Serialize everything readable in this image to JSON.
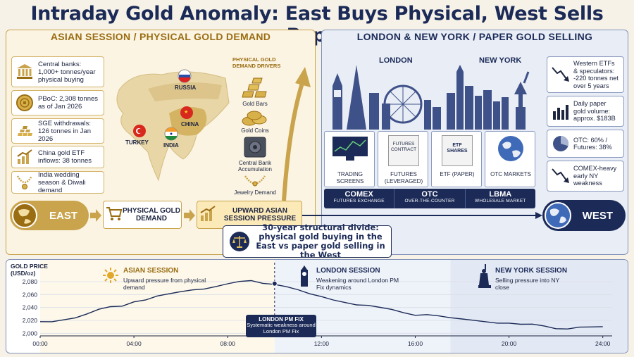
{
  "title": "Intraday Gold Anomaly: East Buys Physical, West Sells Paper",
  "left_panel": {
    "header": "ASIAN SESSION / PHYSICAL GOLD DEMAND",
    "cards": [
      {
        "text": "Central banks: 1,000+ tonnes/year physical buying",
        "icon": "bank-icon"
      },
      {
        "text": "PBoC: 2,308 tonnes as of Jan 2026",
        "icon": "gold-coin-icon"
      },
      {
        "text": "SGE withdrawals: 126 tonnes in Jan 2026",
        "icon": "gold-bars-stack-icon"
      },
      {
        "text": "China gold ETF inflows: 38 tonnes",
        "icon": "bar-chart-up-icon"
      },
      {
        "text": "India wedding season & Diwali demand",
        "icon": "necklace-icon"
      }
    ],
    "countries": {
      "russia": "RUSSIA",
      "china": "CHINA",
      "turkey": "TURKEY",
      "india": "INDIA"
    },
    "drivers_title": "PHYSICAL GOLD DEMAND DRIVERS",
    "drivers": [
      "Gold Bars",
      "Gold Coins",
      "Central Bank Accumulation",
      "Jewelry Demand"
    ]
  },
  "right_panel": {
    "header": "LONDON & NEW YORK / PAPER GOLD SELLING",
    "city_london": "LONDON",
    "city_newyork": "NEW YORK",
    "instruments": [
      {
        "label": "TRADING SCREENS"
      },
      {
        "label": "FUTURES (LEVERAGED)",
        "doc": "FUTURES CONTRACT"
      },
      {
        "label": "ETF (PAPER)",
        "doc": "ETF SHARES"
      },
      {
        "label": "OTC MARKETS"
      }
    ],
    "markets": [
      {
        "name": "COMEX",
        "sub": "FUTURES EXCHANGE"
      },
      {
        "name": "OTC",
        "sub": "OVER-THE-COUNTER"
      },
      {
        "name": "LBMA",
        "sub": "WHOLESALE MARKET"
      }
    ],
    "cards": [
      {
        "text": "Western ETFs & speculators: -220 tonnes net over 5 years",
        "icon": "down-trend-icon"
      },
      {
        "text": "Daily paper gold volume: approx. $183B",
        "icon": "bar-chart-icon"
      },
      {
        "text": "OTC: 60% / Futures: 38%",
        "icon": "pie-chart-icon"
      },
      {
        "text": "COMEX-heavy early NY weakness",
        "icon": "down-trend-icon"
      }
    ]
  },
  "flow": {
    "east": "EAST",
    "step1": "PHYSICAL GOLD DEMAND",
    "step2": "UPWARD ASIAN SESSION PRESSURE",
    "west": "WEST",
    "divide": "30-year structural divide: physical gold buying in the East vs paper gold selling in the West"
  },
  "chart_sessions": {
    "asian": {
      "title": "ASIAN SESSION",
      "desc": "Upward pressure from physical demand"
    },
    "london": {
      "title": "LONDON SESSION",
      "desc": "Weakening around London PM Fix dynamics"
    },
    "newyork": {
      "title": "NEW YORK SESSION",
      "desc": "Selling pressure into NY close"
    },
    "fix": {
      "title": "LONDON PM FIX",
      "desc": "Systematic weakness around London PM Fix"
    }
  },
  "colors": {
    "navy": "#1b2a57",
    "gold": "#c9a44c",
    "cream": "#fbf4e3",
    "light_blue": "#e9eef6"
  },
  "chart_data": {
    "type": "line",
    "ylabel": "GOLD PRICE (USD/oz)",
    "xlabel": "",
    "x_ticks": [
      "00:00",
      "04:00",
      "08:00",
      "12:00",
      "16:00",
      "20:00",
      "24:00"
    ],
    "y_ticks": [
      2000,
      2020,
      2040,
      2060,
      2080
    ],
    "ylim": [
      1996,
      2092
    ],
    "xlim": [
      0,
      24.4
    ],
    "grid": true,
    "series": [
      {
        "x": [
          0,
          0.5,
          1,
          1.5,
          2,
          2.5,
          3,
          3.5,
          4,
          4.5,
          5,
          5.5,
          6,
          6.5,
          7,
          7.5,
          8,
          8.5,
          9,
          9.5,
          10,
          10.5,
          11,
          11.5,
          12,
          12.5,
          13,
          13.5,
          14,
          14.5,
          15,
          15.5,
          16,
          16.5,
          17,
          17.5,
          18,
          18.5,
          19,
          19.5,
          20,
          20.5,
          21,
          21.5,
          22,
          22.5,
          23,
          23.5,
          24
        ],
        "y": [
          2018,
          2019,
          2022,
          2024,
          2029,
          2036,
          2041,
          2043,
          2050,
          2052,
          2057,
          2060,
          2064,
          2068,
          2070,
          2073,
          2076,
          2079,
          2081,
          2078,
          2077,
          2073,
          2067,
          2060,
          2056,
          2052,
          2049,
          2045,
          2043,
          2039,
          2036,
          2032,
          2029,
          2030,
          2027,
          2023,
          2021,
          2020,
          2019,
          2017,
          2016,
          2013,
          2013,
          2011,
          2008,
          2008,
          2010,
          2009,
          2009
        ]
      }
    ],
    "annotations": [
      "London PM Fix at ~10:00"
    ]
  }
}
